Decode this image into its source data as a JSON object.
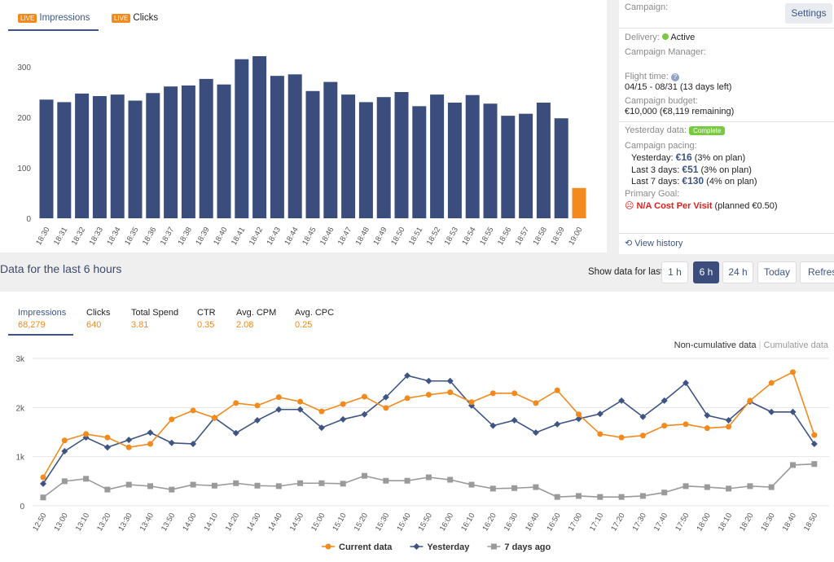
{
  "tabs": [
    {
      "badge": "LIVE",
      "label": "Impressions"
    },
    {
      "badge": "LIVE",
      "label": "Clicks"
    }
  ],
  "campaign": {
    "campaign_label": "Campaign:",
    "settings": "Settings",
    "delivery_label": "Delivery:",
    "delivery_status": "Active",
    "manager_label": "Campaign Manager:",
    "flight_label": "Flight time:",
    "flight_value": "04/15 - 08/31 (13 days left)",
    "budget_label": "Campaign budget:",
    "budget_value": "€10,000 (€8,119 remaining)",
    "yesterday_label": "Yesterday data:",
    "yesterday_badge": "Complete",
    "pacing_label": "Campaign pacing:",
    "pacing": [
      {
        "label": "Yesterday:",
        "amount": "€16",
        "note": "(3% on plan)"
      },
      {
        "label": "Last 3 days:",
        "amount": "€51",
        "note": "(3% on plan)"
      },
      {
        "label": "Last 7 days:",
        "amount": "€130",
        "note": "(4% on plan)"
      }
    ],
    "goal_label": "Primary Goal:",
    "goal_value": "N/A Cost Per Visit",
    "goal_note": "(planned €0.50)",
    "history": "View history"
  },
  "section_title": "Data for the last 6 hours",
  "range": {
    "label": "Show data for last:",
    "options": [
      "1 h",
      "6 h",
      "24 h",
      "Today"
    ],
    "selected": 1,
    "refresh": "Refresh"
  },
  "metrics": [
    {
      "label": "Impressions",
      "value": "68,279"
    },
    {
      "label": "Clicks",
      "value": "640"
    },
    {
      "label": "Total Spend",
      "value": "3.81"
    },
    {
      "label": "CTR",
      "value": "0.35"
    },
    {
      "label": "Avg. CPM",
      "value": "2.08"
    },
    {
      "label": "Avg. CPC",
      "value": "0.25"
    }
  ],
  "view_toggle": [
    "Non-cumulative data",
    "Cumulative data"
  ],
  "chart_data": [
    {
      "type": "bar",
      "categories": [
        "18:30",
        "18:31",
        "18:32",
        "18:33",
        "18:34",
        "18:35",
        "18:36",
        "18:37",
        "18:38",
        "18:39",
        "18:40",
        "18:41",
        "18:42",
        "18:43",
        "18:44",
        "18:45",
        "18:46",
        "18:47",
        "18:48",
        "18:49",
        "18:50",
        "18:51",
        "18:52",
        "18:53",
        "18:54",
        "18:55",
        "18:56",
        "18:57",
        "18:58",
        "18:59",
        "19:00"
      ],
      "values": [
        235,
        230,
        247,
        242,
        245,
        233,
        248,
        261,
        263,
        276,
        265,
        315,
        321,
        282,
        285,
        252,
        270,
        245,
        230,
        240,
        250,
        222,
        245,
        229,
        244,
        227,
        203,
        207,
        229,
        198,
        60
      ],
      "colors": [
        "#3b4d7d",
        "#3b4d7d",
        "#3b4d7d",
        "#3b4d7d",
        "#3b4d7d",
        "#3b4d7d",
        "#3b4d7d",
        "#3b4d7d",
        "#3b4d7d",
        "#3b4d7d",
        "#3b4d7d",
        "#3b4d7d",
        "#3b4d7d",
        "#3b4d7d",
        "#3b4d7d",
        "#3b4d7d",
        "#3b4d7d",
        "#3b4d7d",
        "#3b4d7d",
        "#3b4d7d",
        "#3b4d7d",
        "#3b4d7d",
        "#3b4d7d",
        "#3b4d7d",
        "#3b4d7d",
        "#3b4d7d",
        "#3b4d7d",
        "#3b4d7d",
        "#3b4d7d",
        "#3b4d7d",
        "#f28a1e"
      ],
      "ylim": [
        0,
        340
      ],
      "yticks": [
        0,
        100,
        200,
        300
      ],
      "grid": false
    },
    {
      "type": "line",
      "categories": [
        "12:50",
        "13:00",
        "13:10",
        "13:20",
        "13:30",
        "13:40",
        "13:50",
        "14:00",
        "14:10",
        "14:20",
        "14:30",
        "14:40",
        "14:50",
        "15:00",
        "15:10",
        "15:20",
        "15:30",
        "15:40",
        "15:50",
        "16:00",
        "16:10",
        "16:20",
        "16:30",
        "16:40",
        "16:50",
        "17:00",
        "17:10",
        "17:20",
        "17:30",
        "17:40",
        "17:50",
        "18:00",
        "18:10",
        "18:20",
        "18:30",
        "18:40",
        "18:50"
      ],
      "series": [
        {
          "name": "Current data",
          "color": "#f28a1e",
          "marker": "circle",
          "values": [
            580,
            1330,
            1460,
            1390,
            1190,
            1260,
            1760,
            1940,
            1790,
            2090,
            2040,
            2210,
            2120,
            1920,
            2070,
            2220,
            1990,
            2190,
            2260,
            2310,
            2110,
            2290,
            2290,
            2090,
            2350,
            1860,
            1460,
            1390,
            1430,
            1630,
            1660,
            1580,
            1610,
            2140,
            2500,
            2720,
            1440
          ]
        },
        {
          "name": "Yesterday",
          "color": "#3e5584",
          "marker": "diamond",
          "values": [
            450,
            1110,
            1390,
            1190,
            1340,
            1490,
            1280,
            1260,
            1790,
            1480,
            1740,
            1960,
            1960,
            1590,
            1760,
            1860,
            2210,
            2650,
            2540,
            2540,
            2040,
            1630,
            1740,
            1490,
            1660,
            1770,
            1870,
            2140,
            1810,
            2140,
            2500,
            1840,
            1740,
            2120,
            1910,
            1910,
            1260
          ]
        },
        {
          "name": "7 days ago",
          "color": "#9a9a9a",
          "marker": "square",
          "values": [
            170,
            500,
            550,
            330,
            430,
            400,
            330,
            430,
            410,
            460,
            410,
            400,
            460,
            460,
            450,
            610,
            510,
            510,
            580,
            530,
            430,
            350,
            360,
            380,
            180,
            200,
            180,
            180,
            200,
            270,
            400,
            380,
            350,
            400,
            380,
            830,
            850
          ]
        }
      ],
      "ylim": [
        0,
        3000
      ],
      "yticks": [
        0,
        {
          "value": 1000,
          "label": "1k"
        },
        {
          "value": 2000,
          "label": "2k"
        },
        {
          "value": 3000,
          "label": "3k"
        }
      ],
      "grid": true,
      "legend": "bottom"
    }
  ]
}
